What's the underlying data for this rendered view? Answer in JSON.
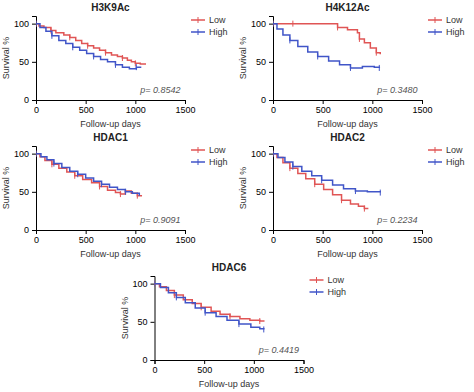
{
  "chart_data": [
    {
      "type": "step",
      "title": "H3K9Ac",
      "xlabel": "Follow-up days",
      "ylabel": "Survival %",
      "xlim": [
        0,
        1500
      ],
      "ylim": [
        0,
        110
      ],
      "xticks": [
        0,
        500,
        1000,
        1500
      ],
      "yticks": [
        0,
        50,
        100
      ],
      "grid": false,
      "legend": "right",
      "annotations": [
        "p= 0.8542"
      ],
      "series": [
        {
          "name": "Low",
          "color": "#e05555",
          "marker": "vline",
          "x": [
            0,
            30,
            80,
            150,
            200,
            280,
            340,
            400,
            460,
            520,
            580,
            640,
            700,
            760,
            820,
            870,
            920,
            960,
            1000,
            1050,
            1100
          ],
          "values": [
            100,
            97,
            95,
            91,
            88,
            85,
            82,
            78,
            74,
            71,
            68,
            65,
            62,
            59,
            57,
            55,
            52,
            50,
            48,
            47,
            46
          ]
        },
        {
          "name": "High",
          "color": "#4055c8",
          "marker": "vline",
          "x": [
            0,
            40,
            100,
            160,
            230,
            300,
            370,
            440,
            510,
            580,
            650,
            720,
            800,
            870,
            940,
            1010,
            1060
          ],
          "values": [
            100,
            95,
            90,
            84,
            78,
            74,
            69,
            65,
            61,
            57,
            53,
            50,
            46,
            43,
            41,
            43,
            43
          ]
        }
      ]
    },
    {
      "type": "step",
      "title": "H4K12Ac",
      "xlabel": "Follow-up days",
      "ylabel": "Survival %",
      "xlim": [
        0,
        1500
      ],
      "ylim": [
        0,
        110
      ],
      "xticks": [
        0,
        500,
        1000,
        1500
      ],
      "yticks": [
        0,
        50,
        100
      ],
      "grid": false,
      "legend": "right",
      "annotations": [
        "p= 0.3480"
      ],
      "series": [
        {
          "name": "Low",
          "color": "#e05555",
          "marker": "vline",
          "x": [
            0,
            50,
            100,
            200,
            350,
            500,
            650,
            750,
            850,
            870,
            920,
            980,
            1040,
            1080
          ],
          "values": [
            100,
            100,
            100,
            100,
            100,
            100,
            95,
            92,
            88,
            80,
            75,
            68,
            62,
            60
          ]
        },
        {
          "name": "High",
          "color": "#4055c8",
          "marker": "vline",
          "x": [
            0,
            40,
            100,
            170,
            250,
            350,
            450,
            560,
            670,
            780,
            900,
            1020,
            1070
          ],
          "values": [
            100,
            93,
            85,
            78,
            70,
            63,
            57,
            51,
            46,
            42,
            44,
            43,
            42
          ]
        }
      ]
    },
    {
      "type": "step",
      "title": "HDAC1",
      "xlabel": "Follow-up days",
      "ylabel": "Survival %",
      "xlim": [
        0,
        1500
      ],
      "ylim": [
        0,
        110
      ],
      "xticks": [
        0,
        500,
        1000,
        1500
      ],
      "yticks": [
        0,
        50,
        100
      ],
      "grid": false,
      "legend": "right",
      "annotations": [
        "p= 0.9091"
      ],
      "series": [
        {
          "name": "Low",
          "color": "#e05555",
          "marker": "vline",
          "x": [
            0,
            40,
            90,
            160,
            230,
            310,
            390,
            470,
            560,
            640,
            720,
            800,
            850,
            900,
            960,
            1020,
            1060
          ],
          "values": [
            100,
            96,
            91,
            86,
            81,
            76,
            71,
            66,
            62,
            57,
            52,
            49,
            47,
            51,
            48,
            45,
            44
          ]
        },
        {
          "name": "High",
          "color": "#4055c8",
          "marker": "vline",
          "x": [
            0,
            50,
            110,
            180,
            260,
            340,
            420,
            500,
            580,
            660,
            740,
            820,
            900,
            970,
            1040
          ],
          "values": [
            100,
            96,
            92,
            87,
            82,
            77,
            73,
            68,
            64,
            60,
            56,
            53,
            50,
            48,
            45
          ]
        }
      ]
    },
    {
      "type": "step",
      "title": "HDAC2",
      "xlabel": "Follow-up days",
      "ylabel": "Survival %",
      "xlim": [
        0,
        1500
      ],
      "ylim": [
        0,
        110
      ],
      "xticks": [
        0,
        500,
        1000,
        1500
      ],
      "yticks": [
        0,
        50,
        100
      ],
      "grid": false,
      "legend": "right",
      "annotations": [
        "p= 0.2234"
      ],
      "series": [
        {
          "name": "Low",
          "color": "#e05555",
          "marker": "vline",
          "x": [
            0,
            40,
            100,
            170,
            250,
            330,
            420,
            510,
            600,
            690,
            780,
            860,
            920,
            960
          ],
          "values": [
            100,
            95,
            88,
            81,
            74,
            67,
            60,
            53,
            46,
            39,
            34,
            31,
            28,
            28
          ]
        },
        {
          "name": "High",
          "color": "#4055c8",
          "marker": "vline",
          "x": [
            0,
            50,
            120,
            200,
            290,
            390,
            490,
            600,
            710,
            830,
            950,
            1040,
            1080
          ],
          "values": [
            100,
            95,
            89,
            83,
            77,
            71,
            65,
            59,
            54,
            51,
            50,
            50,
            49
          ]
        }
      ]
    },
    {
      "type": "step",
      "title": "HDAC6",
      "xlabel": "Follow-up days",
      "ylabel": "Survival %",
      "xlim": [
        0,
        1500
      ],
      "ylim": [
        0,
        110
      ],
      "xticks": [
        0,
        500,
        1000,
        1500
      ],
      "yticks": [
        0,
        50,
        100
      ],
      "grid": false,
      "legend": "right",
      "annotations": [
        "p= 0.4419"
      ],
      "series": [
        {
          "name": "Low",
          "color": "#e05555",
          "marker": "vline",
          "x": [
            0,
            50,
            120,
            200,
            290,
            380,
            470,
            570,
            660,
            760,
            860,
            960,
            1060,
            1100
          ],
          "values": [
            100,
            96,
            91,
            85,
            79,
            74,
            69,
            64,
            60,
            57,
            54,
            52,
            51,
            50
          ]
        },
        {
          "name": "High",
          "color": "#4055c8",
          "marker": "vline",
          "x": [
            0,
            60,
            140,
            220,
            310,
            410,
            510,
            620,
            730,
            850,
            970,
            1060,
            1100
          ],
          "values": [
            100,
            95,
            88,
            82,
            75,
            68,
            62,
            57,
            52,
            47,
            43,
            41,
            40
          ]
        }
      ]
    }
  ]
}
